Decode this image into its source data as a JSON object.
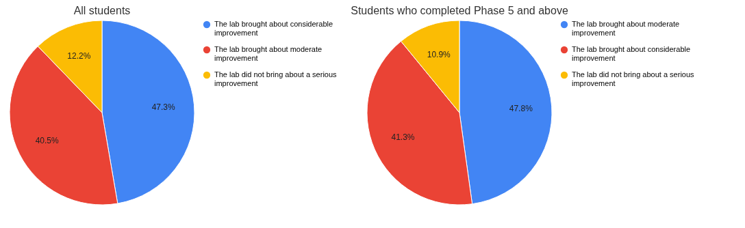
{
  "chart_data": [
    {
      "type": "pie",
      "title": "All students",
      "categories": [
        "The lab brought about considerable improvement",
        "The lab brought about moderate improvement",
        "The lab did not bring about a serious improvement"
      ],
      "values": [
        47.3,
        40.5,
        12.2
      ],
      "value_labels": [
        "47.3%",
        "40.5%",
        "12.2%"
      ],
      "colors": [
        "#4285f4",
        "#ea4335",
        "#fbbc04"
      ],
      "legend": "right"
    },
    {
      "type": "pie",
      "title": "Students who completed Phase 5 and above",
      "categories": [
        "The lab brought about moderate improvement",
        "The lab brought about considerable improvement",
        "The lab did not bring about a serious improvement"
      ],
      "values": [
        47.8,
        41.3,
        10.9
      ],
      "value_labels": [
        "47.8%",
        "41.3%",
        "10.9%"
      ],
      "colors": [
        "#4285f4",
        "#ea4335",
        "#fbbc04"
      ],
      "legend": "right"
    }
  ]
}
